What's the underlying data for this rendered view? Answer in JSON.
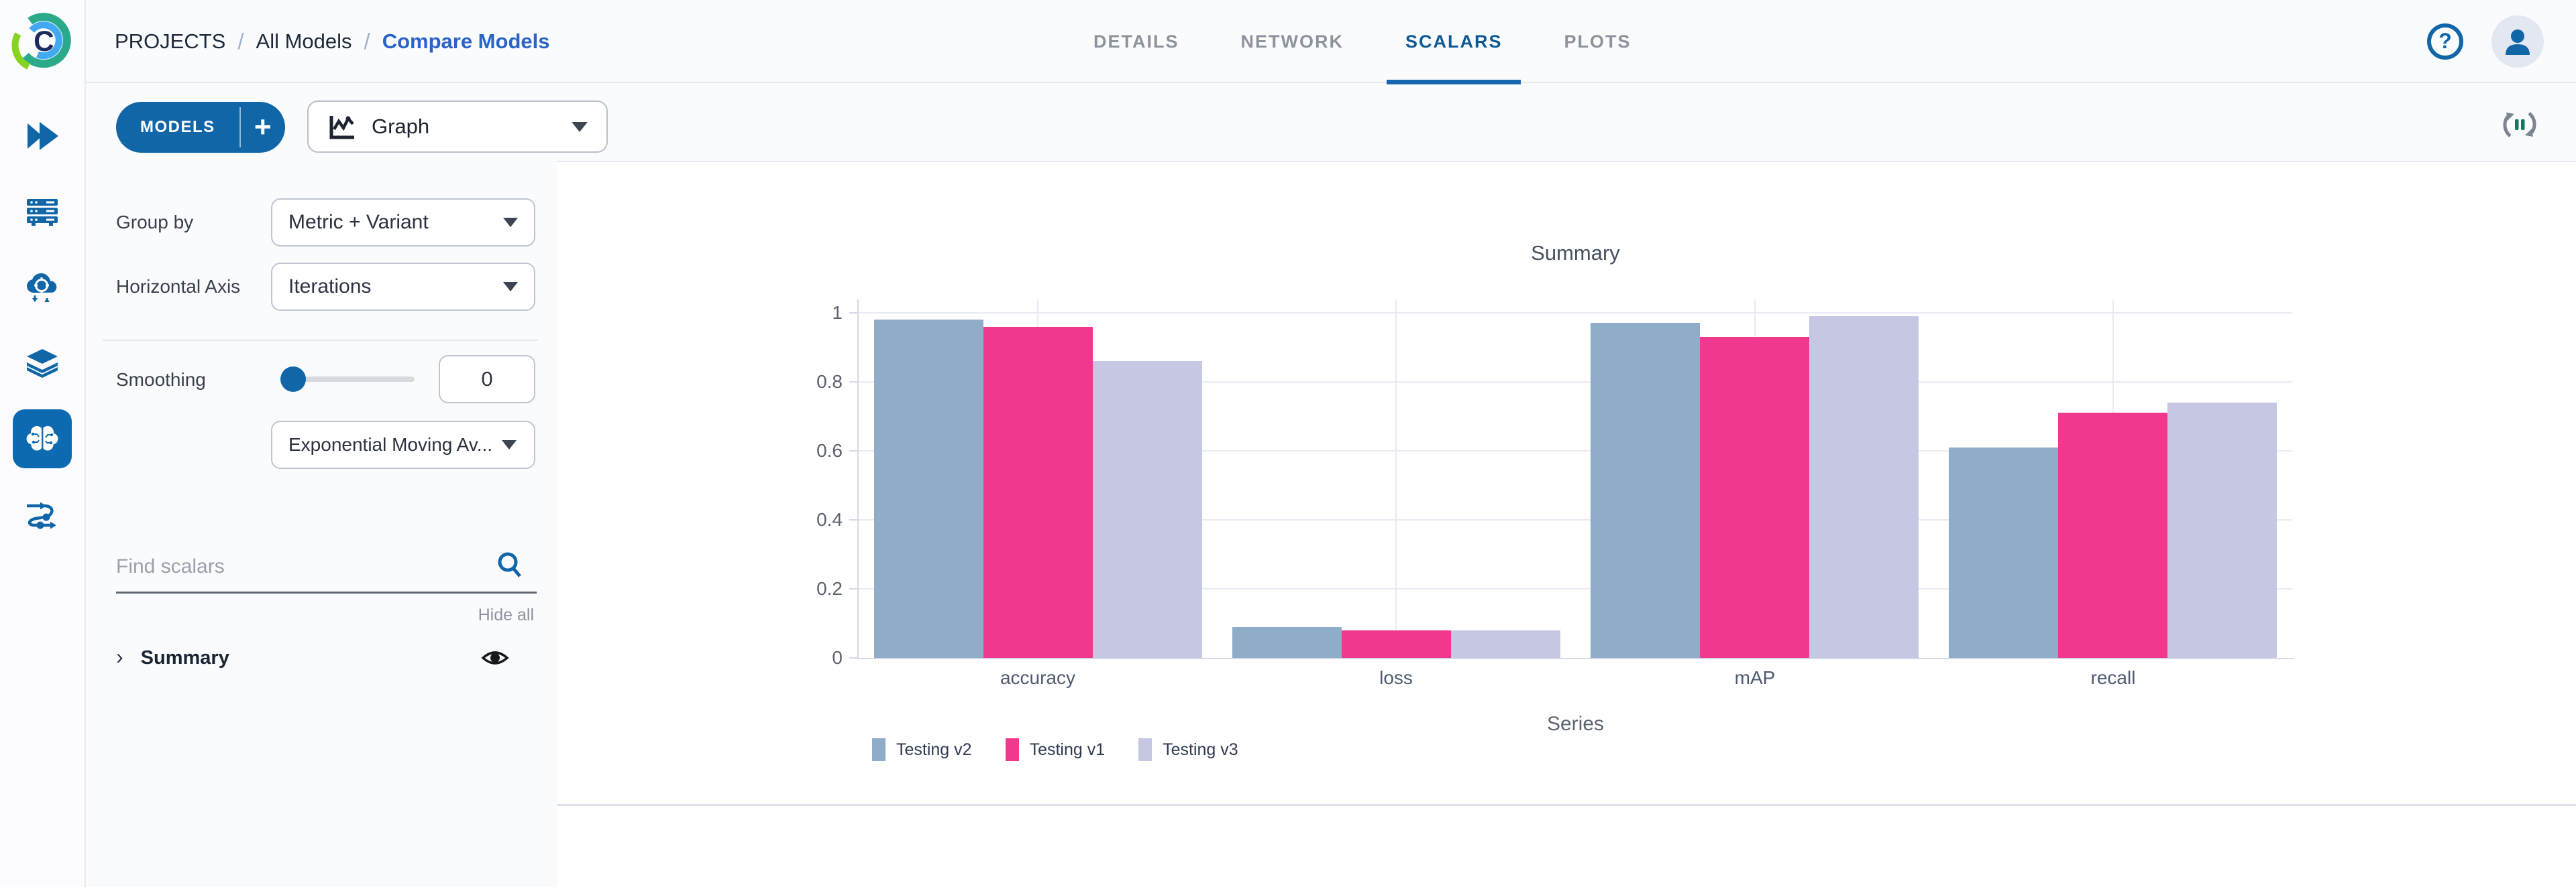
{
  "header": {
    "breadcrumb": [
      {
        "label": "PROJECTS"
      },
      {
        "label": "All Models"
      },
      {
        "label": "Compare Models",
        "active": true
      }
    ],
    "separator": "/",
    "tabs": [
      {
        "label": "DETAILS",
        "active": false
      },
      {
        "label": "NETWORK",
        "active": false
      },
      {
        "label": "SCALARS",
        "active": true
      },
      {
        "label": "PLOTS",
        "active": false
      }
    ],
    "icons": [
      "help-icon",
      "user-avatar-icon"
    ]
  },
  "sidebar": {
    "items": [
      {
        "icon": "experiments-icon",
        "active": false
      },
      {
        "icon": "workers-queues-icon",
        "active": false
      },
      {
        "icon": "data-processing-icon",
        "active": false
      },
      {
        "icon": "datasets-icon",
        "active": false
      },
      {
        "icon": "models-icon",
        "active": true
      },
      {
        "icon": "pipelines-icon",
        "active": false
      }
    ]
  },
  "toolbar": {
    "models_label": "MODELS",
    "add_label": "+",
    "view_selector": {
      "value": "Graph",
      "icon": "graph-chart-icon"
    },
    "refresh_icon": "auto-refresh-icon"
  },
  "controls": {
    "group_by": {
      "label": "Group by",
      "value": "Metric + Variant"
    },
    "horizontal_axis": {
      "label": "Horizontal Axis",
      "value": "Iterations"
    },
    "smoothing": {
      "label": "Smoothing",
      "value": "0",
      "method": "Exponential Moving Av..."
    },
    "search": {
      "placeholder": "Find scalars"
    },
    "hide_all_label": "Hide all",
    "metric_group": {
      "label": "Summary",
      "expanded": false
    }
  },
  "chart_data": {
    "type": "bar",
    "title": "Summary",
    "categories": [
      "accuracy",
      "loss",
      "mAP",
      "recall"
    ],
    "series": [
      {
        "name": "Testing v2",
        "color": "#8fadc9",
        "values": [
          0.98,
          0.09,
          0.97,
          0.61
        ]
      },
      {
        "name": "Testing v1",
        "color": "#f0388f",
        "values": [
          0.96,
          0.08,
          0.93,
          0.71
        ]
      },
      {
        "name": "Testing v3",
        "color": "#c6c7e2",
        "values": [
          0.86,
          0.08,
          0.99,
          0.74
        ]
      }
    ],
    "xlabel": "Series",
    "ylabel": "",
    "ylim": [
      0,
      1
    ],
    "yticks": [
      0,
      0.2,
      0.4,
      0.6,
      0.8,
      1
    ],
    "grid": true,
    "legend_position": "bottom-left"
  }
}
